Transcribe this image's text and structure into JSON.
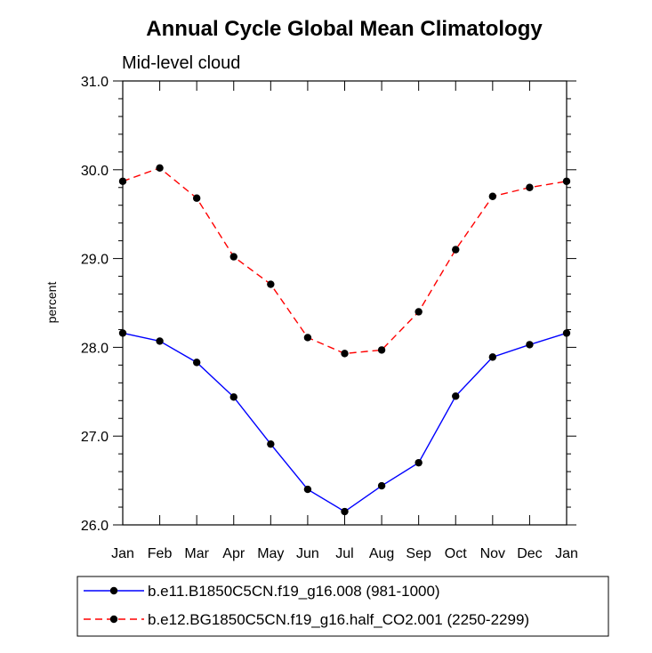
{
  "chart_data": {
    "type": "line",
    "title": "Annual Cycle Global Mean Climatology",
    "subtitle": "Mid-level cloud",
    "xlabel": "",
    "ylabel": "percent",
    "categories": [
      "Jan",
      "Feb",
      "Mar",
      "Apr",
      "May",
      "Jun",
      "Jul",
      "Aug",
      "Sep",
      "Oct",
      "Nov",
      "Dec",
      "Jan"
    ],
    "ylim": [
      26.0,
      31.0
    ],
    "yticks": [
      "26.0",
      "27.0",
      "28.0",
      "29.0",
      "30.0",
      "31.0"
    ],
    "grid": false,
    "legend_position": "bottom",
    "series": [
      {
        "name": "b.e11.B1850C5CN.f19_g16.008 (981-1000)",
        "color": "#0000ff",
        "line_style": "solid",
        "values": [
          28.16,
          28.07,
          27.83,
          27.44,
          26.91,
          26.4,
          26.15,
          26.44,
          26.7,
          27.45,
          27.89,
          28.03,
          28.16
        ]
      },
      {
        "name": "b.e12.BG1850C5CN.f19_g16.half_CO2.001 (2250-2299)",
        "color": "#ff0000",
        "line_style": "dashed",
        "values": [
          29.87,
          30.02,
          29.68,
          29.02,
          28.71,
          28.11,
          27.93,
          27.97,
          28.4,
          29.1,
          29.7,
          29.8,
          29.87
        ]
      }
    ]
  }
}
